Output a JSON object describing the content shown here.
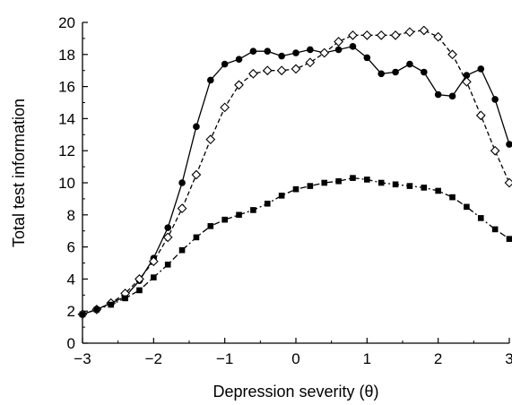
{
  "chart_data": {
    "type": "line",
    "xlabel": "Depression severity (θ)",
    "ylabel": "Total test information",
    "xlim": [
      -3,
      3
    ],
    "ylim": [
      0,
      20
    ],
    "xticks": [
      -3,
      -2,
      -1,
      0,
      1,
      2,
      3
    ],
    "xtick_labels": [
      "−3",
      "−2",
      "−1",
      "0",
      "1",
      "2",
      "3"
    ],
    "yticks": [
      0,
      2,
      4,
      6,
      8,
      10,
      12,
      14,
      16,
      18,
      20
    ],
    "grid": false,
    "series": [
      {
        "style": "solid",
        "marker": "filled-circle",
        "color": "#000000",
        "x": [
          -3.0,
          -2.8,
          -2.6,
          -2.4,
          -2.2,
          -2.0,
          -1.8,
          -1.6,
          -1.4,
          -1.2,
          -1.0,
          -0.8,
          -0.6,
          -0.4,
          -0.2,
          0.0,
          0.2,
          0.4,
          0.6,
          0.8,
          1.0,
          1.2,
          1.4,
          1.6,
          1.8,
          2.0,
          2.2,
          2.4,
          2.6,
          2.8,
          3.0
        ],
        "y": [
          1.8,
          2.1,
          2.5,
          2.9,
          3.9,
          5.3,
          7.2,
          10.0,
          13.5,
          16.4,
          17.4,
          17.7,
          18.2,
          18.2,
          17.9,
          18.1,
          18.3,
          18.1,
          18.3,
          18.5,
          17.8,
          16.8,
          16.9,
          17.4,
          16.9,
          15.5,
          15.4,
          16.7,
          17.1,
          15.2,
          12.4
        ]
      },
      {
        "style": "dashed",
        "marker": "open-diamond",
        "color": "#000000",
        "x": [
          -3.0,
          -2.8,
          -2.6,
          -2.4,
          -2.2,
          -2.0,
          -1.8,
          -1.6,
          -1.4,
          -1.2,
          -1.0,
          -0.8,
          -0.6,
          -0.4,
          -0.2,
          0.0,
          0.2,
          0.4,
          0.6,
          0.8,
          1.0,
          1.2,
          1.4,
          1.6,
          1.8,
          2.0,
          2.2,
          2.4,
          2.6,
          2.8,
          3.0
        ],
        "y": [
          1.8,
          2.1,
          2.5,
          3.1,
          4.0,
          5.1,
          6.6,
          8.4,
          10.5,
          12.7,
          14.7,
          16.1,
          16.8,
          17.0,
          17.0,
          17.1,
          17.5,
          18.1,
          18.8,
          19.2,
          19.2,
          19.2,
          19.2,
          19.4,
          19.5,
          19.1,
          18.0,
          16.3,
          14.2,
          12.0,
          10.0
        ]
      },
      {
        "style": "dash-dot",
        "marker": "filled-square",
        "color": "#000000",
        "x": [
          -3.0,
          -2.8,
          -2.6,
          -2.4,
          -2.2,
          -2.0,
          -1.8,
          -1.6,
          -1.4,
          -1.2,
          -1.0,
          -0.8,
          -0.6,
          -0.4,
          -0.2,
          0.0,
          0.2,
          0.4,
          0.6,
          0.8,
          1.0,
          1.2,
          1.4,
          1.6,
          1.8,
          2.0,
          2.2,
          2.4,
          2.6,
          2.8,
          3.0
        ],
        "y": [
          1.8,
          2.1,
          2.4,
          2.8,
          3.3,
          4.1,
          4.9,
          5.8,
          6.6,
          7.3,
          7.7,
          8.0,
          8.3,
          8.7,
          9.2,
          9.6,
          9.8,
          10.0,
          10.1,
          10.3,
          10.2,
          10.0,
          9.9,
          9.8,
          9.7,
          9.5,
          9.1,
          8.5,
          7.8,
          7.1,
          6.5
        ]
      }
    ]
  }
}
